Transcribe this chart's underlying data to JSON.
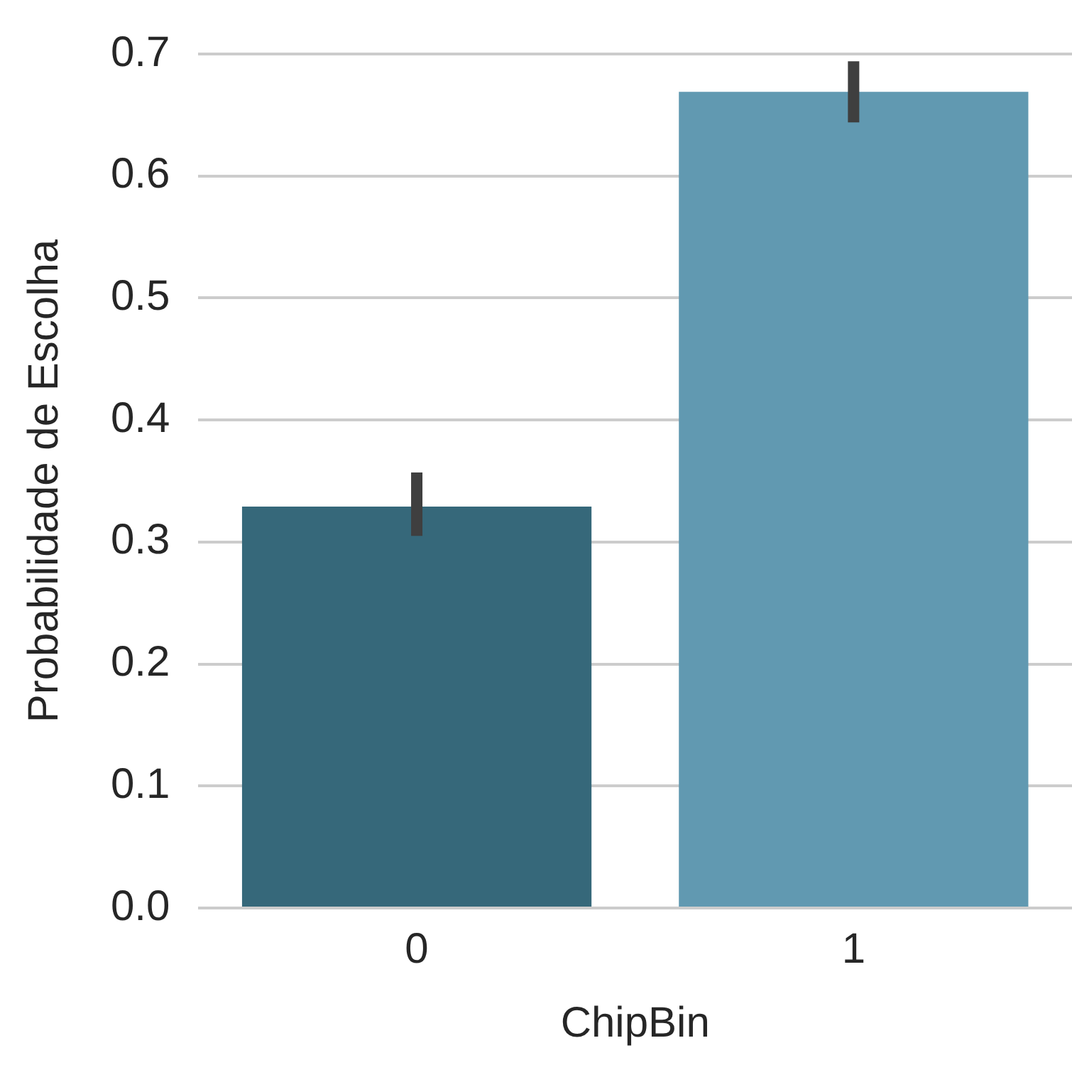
{
  "chart_data": {
    "type": "bar",
    "xlabel": "ChipBin",
    "ylabel": "Probabilidade de Escolha",
    "categories": [
      "0",
      "1"
    ],
    "values": [
      0.329,
      0.669
    ],
    "colors": [
      "#36687a",
      "#6199b1"
    ],
    "errors": [
      [
        0.305,
        0.357
      ],
      [
        0.644,
        0.694
      ]
    ],
    "ylim": [
      0,
      0.7
    ],
    "yticks": [
      {
        "value": 0,
        "label": "0.0"
      },
      {
        "value": 0.1,
        "label": "0.1"
      },
      {
        "value": 0.2,
        "label": "0.2"
      },
      {
        "value": 0.3,
        "label": "0.3"
      },
      {
        "value": 0.4,
        "label": "0.4"
      },
      {
        "value": 0.5,
        "label": "0.5"
      },
      {
        "value": 0.6,
        "label": "0.6"
      },
      {
        "value": 0.7,
        "label": "0.7"
      }
    ],
    "grid": "y",
    "legend": false
  }
}
